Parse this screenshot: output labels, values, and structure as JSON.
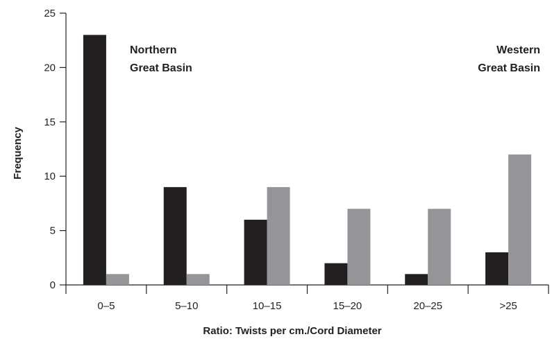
{
  "chart_data": {
    "type": "bar",
    "title": "",
    "xlabel": "Ratio: Twists per cm./Cord Diameter",
    "ylabel": "Frequency",
    "categories": [
      "0–5",
      "5–10",
      "10–15",
      "15–20",
      "20–25",
      ">25"
    ],
    "yticks": [
      "0",
      "5",
      "10",
      "15",
      "20",
      "25"
    ],
    "ylim": [
      0,
      25
    ],
    "grid": false,
    "series": [
      {
        "name": "Northern Great Basin",
        "color": "#231f20",
        "values": [
          23,
          9,
          6,
          2,
          1,
          3
        ]
      },
      {
        "name": "Western Great Basin",
        "color": "#939598",
        "values": [
          1,
          1,
          9,
          7,
          7,
          12
        ]
      }
    ],
    "annotations": {
      "northern_line1": "Northern",
      "northern_line2": "Great Basin",
      "western_line1": "Western",
      "western_line2": "Great Basin"
    }
  }
}
